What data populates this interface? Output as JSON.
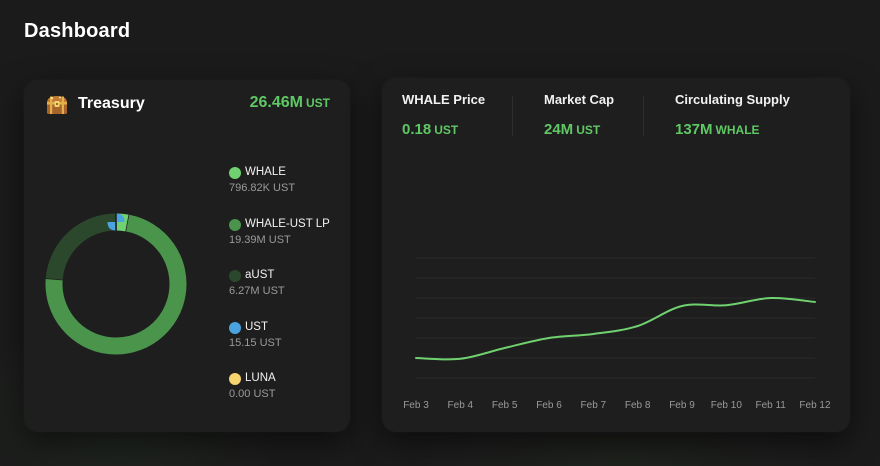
{
  "page": {
    "title": "Dashboard"
  },
  "treasury": {
    "title": "Treasury",
    "total_value": "26.46M",
    "total_unit": "UST",
    "icon": "treasure-chest-icon",
    "assets": [
      {
        "name": "WHALE",
        "value": "796.82K UST",
        "amount": 796820,
        "color": "#6fd16f"
      },
      {
        "name": "WHALE-UST LP",
        "value": "19.39M UST",
        "amount": 19390000,
        "color": "#4a944c"
      },
      {
        "name": "aUST",
        "value": "6.27M UST",
        "amount": 6270000,
        "color": "#2c482c"
      },
      {
        "name": "UST",
        "value": "15.15 UST",
        "amount": 15.15,
        "color": "#4aa3df"
      },
      {
        "name": "LUNA",
        "value": "0.00 UST",
        "amount": 0,
        "color": "#f4d46c"
      }
    ]
  },
  "stats": [
    {
      "label": "WHALE Price",
      "value": "0.18",
      "unit": "UST"
    },
    {
      "label": "Market Cap",
      "value": "24M",
      "unit": "UST"
    },
    {
      "label": "Circulating Supply",
      "value": "137M",
      "unit": "WHALE"
    }
  ],
  "chart_data": {
    "type": "line",
    "categories": [
      "Feb 3",
      "Feb 4",
      "Feb 5",
      "Feb 6",
      "Feb 7",
      "Feb 8",
      "Feb 9",
      "Feb 10",
      "Feb 11",
      "Feb 12"
    ],
    "series": [
      {
        "values": [
          0.05,
          0.048,
          0.075,
          0.1,
          0.11,
          0.13,
          0.18,
          0.182,
          0.2,
          0.19
        ]
      }
    ],
    "ylim": [
      0.0,
      0.3
    ],
    "grid": true,
    "line_color": "#6fd16f"
  }
}
